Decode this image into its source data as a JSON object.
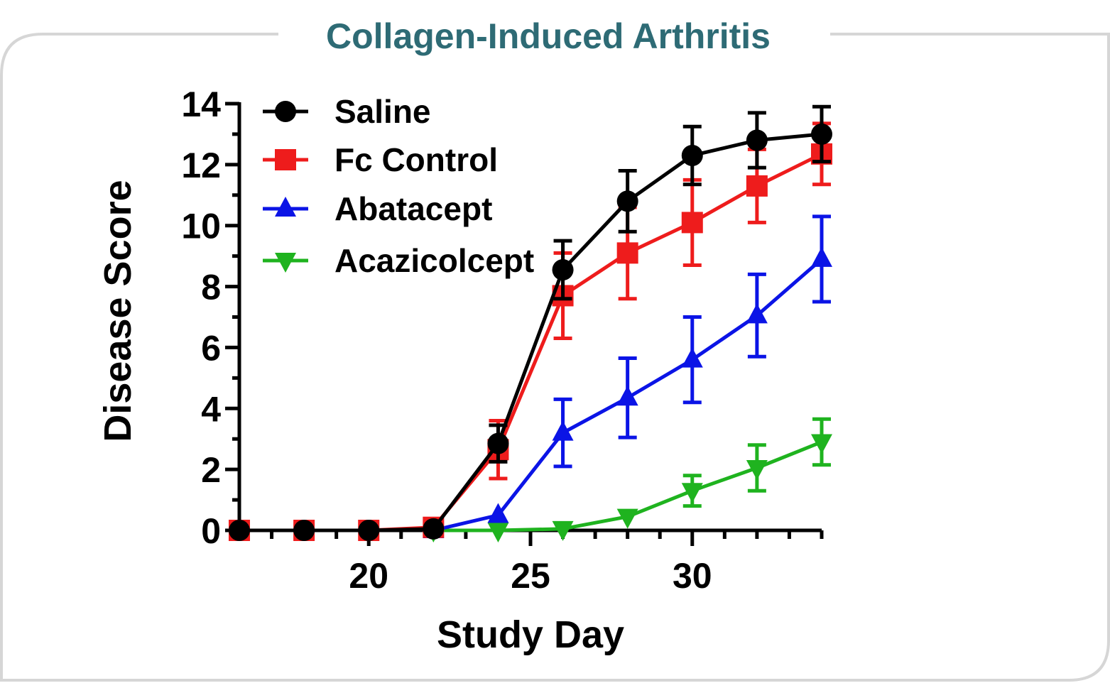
{
  "colors": {
    "frame": "#d6d6d6",
    "title": "#2e6b75",
    "axis": "#000000"
  },
  "chart_data": {
    "type": "line",
    "title": "Collagen-Induced Arthritis",
    "xlabel": "Study Day",
    "ylabel": "Disease Score",
    "xlim": [
      16,
      34
    ],
    "ylim": [
      0,
      14
    ],
    "x_ticks": [
      20,
      25,
      30
    ],
    "y_ticks": [
      0,
      2,
      4,
      6,
      8,
      10,
      12,
      14
    ],
    "grid": false,
    "error_bars": true,
    "legend_position": "top-left",
    "series": [
      {
        "name": "Saline",
        "color": "#000000",
        "marker": "circle",
        "x": [
          16,
          18,
          20,
          22,
          24,
          26,
          28,
          30,
          32,
          34
        ],
        "y": [
          0,
          0,
          0,
          0.05,
          2.85,
          8.55,
          10.8,
          12.3,
          12.8,
          13.0
        ],
        "err": [
          0,
          0,
          0,
          0,
          0.6,
          0.95,
          1.0,
          0.95,
          0.9,
          0.9
        ]
      },
      {
        "name": "Fc Control",
        "color": "#ee1c1c",
        "marker": "square",
        "x": [
          16,
          18,
          20,
          22,
          24,
          26,
          28,
          30,
          32,
          34
        ],
        "y": [
          0,
          0,
          0,
          0.1,
          2.65,
          7.7,
          9.1,
          10.1,
          11.3,
          12.35
        ],
        "err": [
          0,
          0,
          0,
          0,
          0.95,
          1.4,
          1.5,
          1.4,
          1.2,
          1.0
        ]
      },
      {
        "name": "Abatacept",
        "color": "#0b14e6",
        "marker": "triangle-up",
        "x": [
          22,
          24,
          26,
          28,
          30,
          32,
          34
        ],
        "y": [
          0,
          0.5,
          3.2,
          4.35,
          5.6,
          7.05,
          8.9
        ],
        "err": [
          0,
          0,
          1.1,
          1.3,
          1.4,
          1.35,
          1.4
        ]
      },
      {
        "name": "Acazicolcept",
        "color": "#1fb31f",
        "marker": "triangle-down",
        "x": [
          22,
          24,
          26,
          28,
          30,
          32,
          34
        ],
        "y": [
          0,
          0,
          0.05,
          0.45,
          1.3,
          2.05,
          2.9
        ],
        "err": [
          0,
          0,
          0,
          0,
          0.5,
          0.75,
          0.75
        ]
      }
    ]
  }
}
